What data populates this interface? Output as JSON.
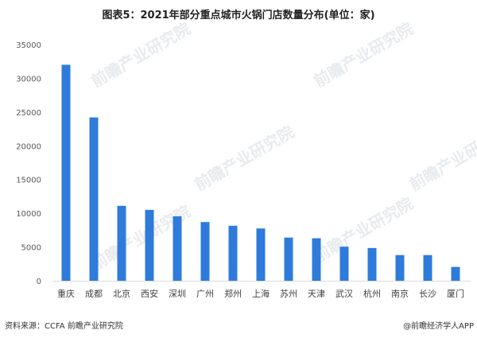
{
  "chart_data": {
    "type": "bar",
    "title": "图表5：2021年部分重点城市火锅门店数量分布(单位：家)",
    "categories": [
      "重庆",
      "成都",
      "北京",
      "西安",
      "深圳",
      "广州",
      "郑州",
      "上海",
      "苏州",
      "天津",
      "武汉",
      "杭州",
      "南京",
      "长沙",
      "厦门"
    ],
    "values": [
      32000,
      24200,
      11100,
      10500,
      9550,
      8700,
      8150,
      7750,
      6400,
      6300,
      5050,
      4850,
      3800,
      3800,
      2050
    ],
    "ylim": [
      0,
      35000
    ],
    "yticks": [
      0,
      5000,
      10000,
      15000,
      20000,
      25000,
      30000,
      35000
    ],
    "xlabel": "",
    "ylabel": "",
    "grid": false,
    "bar_color": "#2E7BDB"
  },
  "footer": {
    "source": "资料来源：CCFA 前瞻产业研究院",
    "credit": "@前瞻经济学人APP"
  },
  "watermark": "前瞻产业研究院"
}
